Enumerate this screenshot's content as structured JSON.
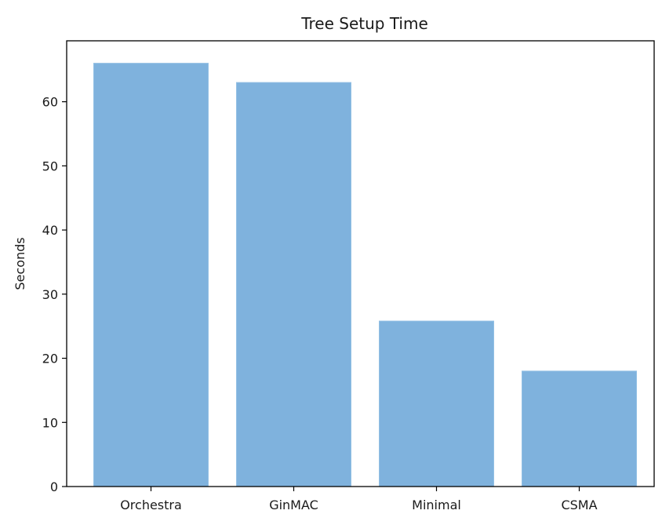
{
  "chart_data": {
    "type": "bar",
    "title": "Tree Setup Time",
    "xlabel": "",
    "ylabel": "Seconds",
    "categories": [
      "Orchestra",
      "GinMAC",
      "Minimal",
      "CSMA"
    ],
    "values": [
      66,
      63,
      25.8,
      18
    ],
    "ylim": [
      0,
      69.5
    ],
    "yticks": [
      0,
      10,
      20,
      30,
      40,
      50,
      60
    ],
    "grid": false,
    "bar_color": "#7fb2dd",
    "axis_color": "#000000"
  }
}
